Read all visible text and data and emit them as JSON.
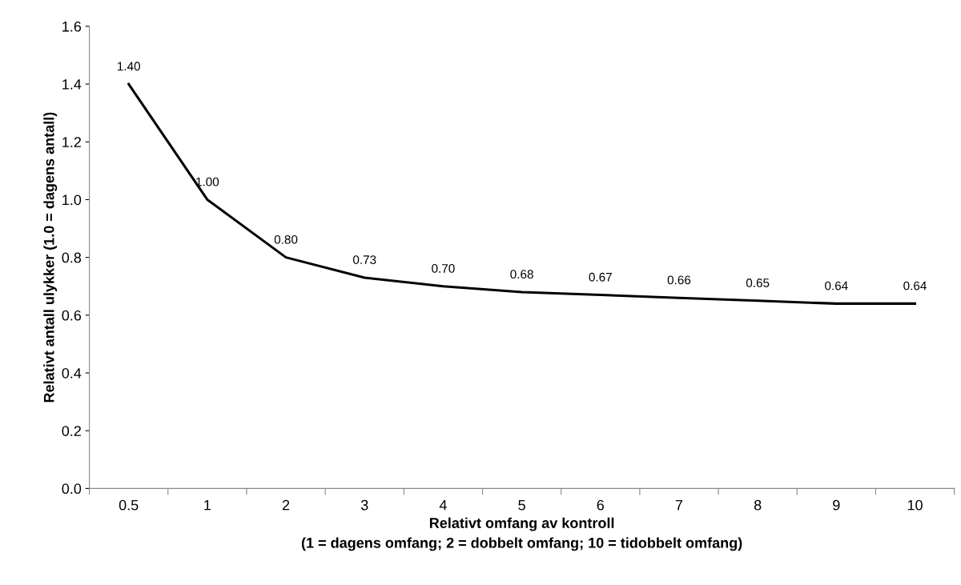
{
  "chart_data": {
    "type": "line",
    "xlabel": "Relativt omfang av kontroll\n(1 = dagens omfang; 2 = dobbelt omfang; 10 = tidobbelt omfang)",
    "ylabel": "Relativt antall ulykker (1.0 = dagens antall)",
    "categories": [
      "0.5",
      "1",
      "2",
      "3",
      "4",
      "5",
      "6",
      "7",
      "8",
      "9",
      "10"
    ],
    "series": [
      {
        "color": "#000000",
        "values": [
          1.4,
          1.0,
          0.8,
          0.73,
          0.7,
          0.68,
          0.67,
          0.66,
          0.65,
          0.64,
          0.64
        ],
        "value_labels": [
          "1.40",
          "1.00",
          "0.80",
          "0.73",
          "0.70",
          "0.68",
          "0.67",
          "0.66",
          "0.65",
          "0.64",
          "0.64"
        ]
      }
    ],
    "ylim": [
      0,
      1.6
    ],
    "yticks": [
      {
        "value": 0,
        "label": "0.0"
      },
      {
        "value": 0.2,
        "label": "0.2"
      },
      {
        "value": 0.4,
        "label": "0.4"
      },
      {
        "value": 0.6,
        "label": "0.6"
      },
      {
        "value": 0.8,
        "label": "0.8"
      },
      {
        "value": 1.0,
        "label": "1.0"
      },
      {
        "value": 1.2,
        "label": "1.2"
      },
      {
        "value": 1.4,
        "label": "1.4"
      },
      {
        "value": 1.6,
        "label": "1.6"
      }
    ],
    "grid": false,
    "legend": false,
    "marker": "none",
    "line_style": "solid"
  }
}
